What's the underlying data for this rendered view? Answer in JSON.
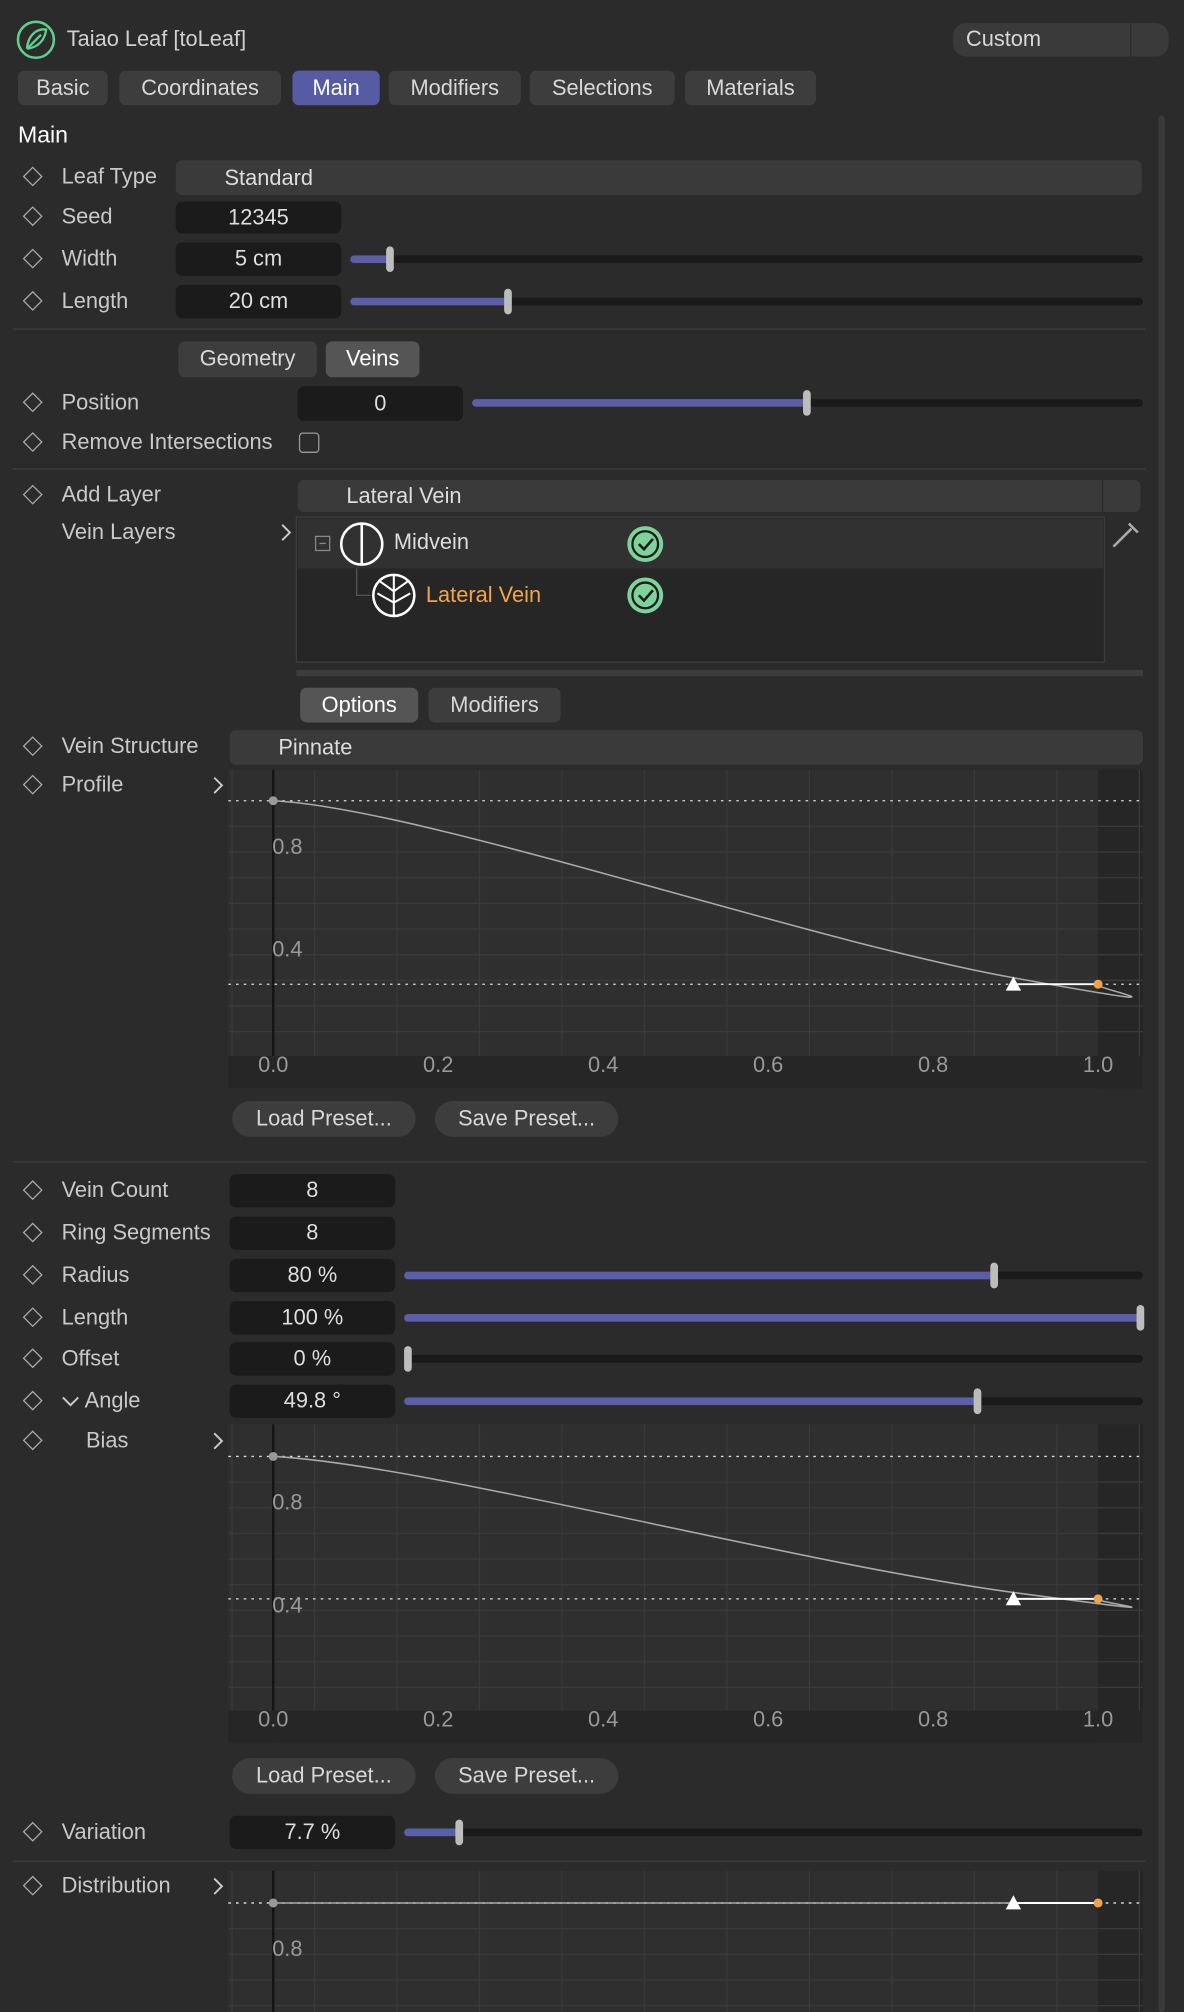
{
  "header": {
    "title": "Taiao Leaf [toLeaf]",
    "preset": "Custom"
  },
  "tabs": [
    "Basic",
    "Coordinates",
    "Main",
    "Modifiers",
    "Selections",
    "Materials"
  ],
  "section_title": "Main",
  "leaf": {
    "leaf_type": {
      "label": "Leaf Type",
      "value": "Standard"
    },
    "seed": {
      "label": "Seed",
      "value": "12345"
    },
    "width": {
      "label": "Width",
      "value": "5 cm"
    },
    "length": {
      "label": "Length",
      "value": "20 cm"
    }
  },
  "subtabs": [
    "Geometry",
    "Veins"
  ],
  "position": {
    "label": "Position",
    "value": "0"
  },
  "remove_intersections": {
    "label": "Remove Intersections"
  },
  "add_layer": {
    "label": "Add Layer",
    "value": "Lateral Vein"
  },
  "vein_layers": {
    "label": "Vein Layers",
    "items": [
      "Midvein",
      "Lateral Vein"
    ]
  },
  "option_tabs": [
    "Options",
    "Modifiers"
  ],
  "vein_structure": {
    "label": "Vein Structure",
    "value": "Pinnate"
  },
  "profile": {
    "label": "Profile",
    "y_labels": [
      "0.8",
      "0.4"
    ],
    "x_labels": [
      "0.0",
      "0.2",
      "0.4",
      "0.6",
      "0.8",
      "1.0"
    ],
    "buttons": [
      "Load Preset...",
      "Save Preset..."
    ]
  },
  "params": {
    "vein_count": {
      "label": "Vein Count",
      "value": "8"
    },
    "ring_segments": {
      "label": "Ring Segments",
      "value": "8"
    },
    "radius": {
      "label": "Radius",
      "value": "80 %"
    },
    "length": {
      "label": "Length",
      "value": "100 %"
    },
    "offset": {
      "label": "Offset",
      "value": "0 %"
    },
    "angle": {
      "label": "Angle",
      "value": "49.8 °"
    }
  },
  "bias": {
    "label": "Bias",
    "y_labels": [
      "0.8",
      "0.4"
    ],
    "x_labels": [
      "0.0",
      "0.2",
      "0.4",
      "0.6",
      "0.8",
      "1.0"
    ],
    "buttons": [
      "Load Preset...",
      "Save Preset..."
    ]
  },
  "variation": {
    "label": "Variation",
    "value": "7.7 %"
  },
  "distribution": {
    "label": "Distribution",
    "y_labels": [
      "0.8"
    ]
  }
}
